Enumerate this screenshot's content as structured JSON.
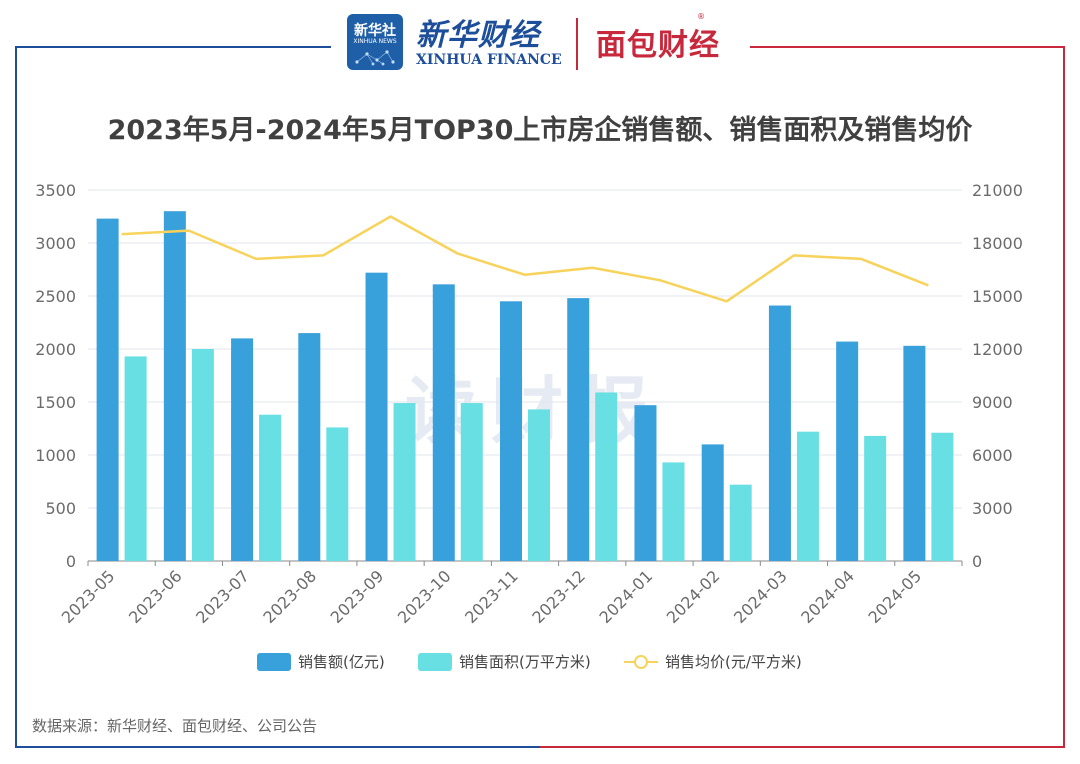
{
  "header": {
    "xinhua_badge_cn": "新华社",
    "xinhua_badge_en": "XINHUA NEWS",
    "xinhua_finance_cn": "新华财经",
    "xinhua_finance_en": "XINHUA FINANCE",
    "mianbao_logo": "面包财经",
    "registered_mark": "®"
  },
  "watermark": "读财报",
  "colors": {
    "frame_left": "#1d4e9a",
    "frame_right": "#c8283c",
    "bar_sales": "#38a0da",
    "bar_area": "#67dfe3",
    "line_price": "#f7d35b"
  },
  "chart_data": {
    "type": "bar",
    "title": "2023年5月-2024年5月TOP30上市房企销售额、销售面积及销售均价",
    "categories": [
      "2023-05",
      "2023-06",
      "2023-07",
      "2023-08",
      "2023-09",
      "2023-10",
      "2023-11",
      "2023-12",
      "2024-01",
      "2024-02",
      "2024-03",
      "2024-04",
      "2024-05"
    ],
    "series": [
      {
        "name": "销售额(亿元)",
        "type": "bar",
        "axis": "left",
        "values": [
          3230,
          3300,
          2100,
          2150,
          2720,
          2610,
          2450,
          2480,
          1470,
          1100,
          2410,
          2070,
          2030
        ]
      },
      {
        "name": "销售面积(万平方米)",
        "type": "bar",
        "axis": "left",
        "values": [
          1930,
          2000,
          1380,
          1260,
          1490,
          1490,
          1430,
          1590,
          930,
          720,
          1220,
          1180,
          1210
        ]
      },
      {
        "name": "销售均价(元/平方米)",
        "type": "line",
        "axis": "right",
        "values": [
          18500,
          18700,
          17100,
          17300,
          19500,
          17400,
          16200,
          16600,
          15900,
          14700,
          17300,
          17100,
          15600
        ]
      }
    ],
    "ylim_left": [
      0,
      3500
    ],
    "ylim_right": [
      0,
      21000
    ],
    "yticks_left": [
      "0",
      "500",
      "1000",
      "1500",
      "2000",
      "2500",
      "3000",
      "3500"
    ],
    "yticks_right": [
      "0",
      "3000",
      "6000",
      "9000",
      "12000",
      "15000",
      "18000",
      "21000"
    ],
    "legend_position": "bottom",
    "grid": true
  },
  "source_note": "数据来源：新华财经、面包财经、公司公告"
}
